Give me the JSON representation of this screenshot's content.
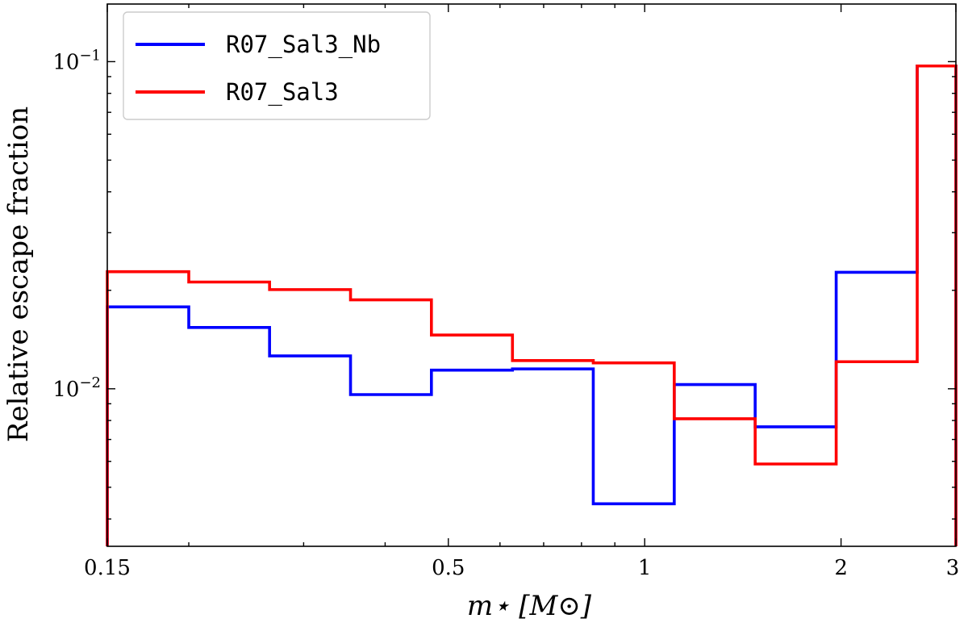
{
  "chart_data": {
    "type": "line",
    "step": "post",
    "xlabel": "m⋆ [M⊙]",
    "ylabel": "Relative escape fraction",
    "xscale": "log",
    "yscale": "log",
    "xlim": [
      0.15,
      3
    ],
    "ylim": [
      0.0033,
      0.15
    ],
    "x_ticks": [
      {
        "value": 0.15,
        "label": "0.15"
      },
      {
        "value": 0.5,
        "label": "0.5"
      },
      {
        "value": 1,
        "label": "1"
      },
      {
        "value": 2,
        "label": "2"
      },
      {
        "value": 3,
        "label": "3"
      }
    ],
    "y_ticks": [
      {
        "value": 0.01,
        "base": "10",
        "exp": "−2"
      },
      {
        "value": 0.1,
        "base": "10",
        "exp": "−1"
      }
    ],
    "grid": false,
    "legend_position": "top-left",
    "bin_edges": [
      0.15,
      0.2,
      0.266,
      0.354,
      0.471,
      0.627,
      0.834,
      1.11,
      1.477,
      1.966,
      2.617,
      3.0
    ],
    "series": [
      {
        "name": "R07_Sal3_Nb",
        "color": "#0000ff",
        "values": [
          0.0178,
          0.0154,
          0.0126,
          0.0096,
          0.0114,
          0.0115,
          0.00445,
          0.0103,
          0.00765,
          0.0227,
          0.097
        ]
      },
      {
        "name": "R07_Sal3",
        "color": "#ff0000",
        "values": [
          0.0228,
          0.0212,
          0.0201,
          0.0187,
          0.0146,
          0.0122,
          0.012,
          0.0081,
          0.00589,
          0.0121,
          0.097
        ]
      }
    ]
  }
}
